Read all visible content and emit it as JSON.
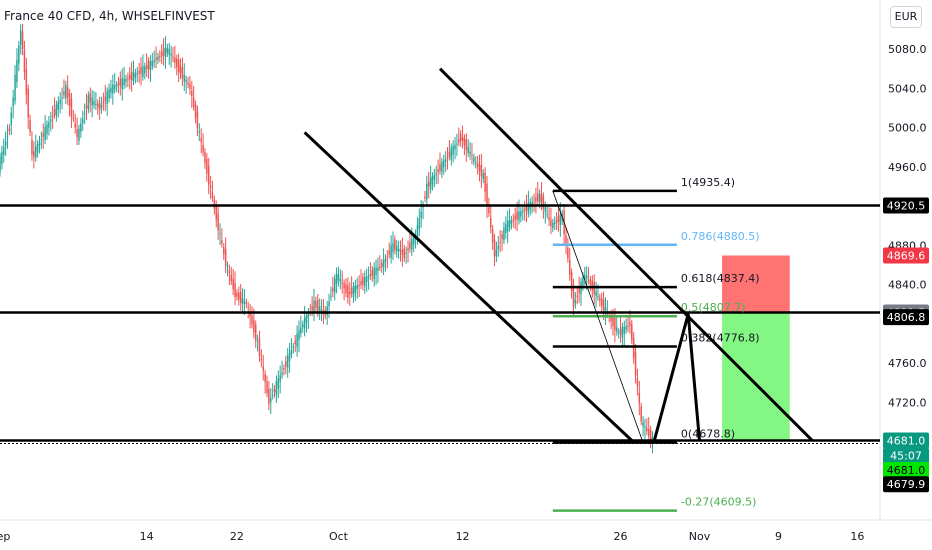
{
  "header": {
    "title": "France 40 CFD, 4h, WHSELFINVEST",
    "currency_label": "EUR"
  },
  "colors": {
    "up": "#26a69a",
    "down": "#ef5350",
    "fib_blue": "#64b5f6",
    "fib_green": "#4caf50",
    "stop_zone": "#ff6b6b",
    "target_zone": "#7cf57c",
    "line": "#000000"
  },
  "chart_data": {
    "type": "candlestick",
    "title": "France 40 CFD, 4h, WHSELFINVEST",
    "xlabel": "",
    "ylabel": "",
    "ylim": [
      4600,
      5130
    ],
    "x_start": "2020-09-01",
    "x_end": "2020-11-18",
    "x_ticks": [
      {
        "date": "2020-09-01",
        "label": "Sep"
      },
      {
        "date": "2020-09-14",
        "label": "14"
      },
      {
        "date": "2020-09-22",
        "label": "22"
      },
      {
        "date": "2020-10-01",
        "label": "Oct"
      },
      {
        "date": "2020-10-12",
        "label": "12"
      },
      {
        "date": "2020-10-26",
        "label": "26"
      },
      {
        "date": "2020-11-02",
        "label": "Nov"
      },
      {
        "date": "2020-11-09",
        "label": "9"
      },
      {
        "date": "2020-11-16",
        "label": "16"
      }
    ],
    "y_ticks": [
      5080.0,
      5040.0,
      5000.0,
      4960.0,
      4880.0,
      4840.0,
      4760.0,
      4720.0
    ],
    "y_tick_labels": [
      "5080.0",
      "5040.0",
      "5000.0",
      "4960.0",
      "4880.0",
      "4840.0",
      "4760.0",
      "4720.0"
    ],
    "price_path": [
      [
        "2020-09-01",
        4960
      ],
      [
        "2020-09-02",
        5000
      ],
      [
        "2020-09-03",
        5100
      ],
      [
        "2020-09-04",
        4970
      ],
      [
        "2020-09-07",
        5040
      ],
      [
        "2020-09-08",
        4990
      ],
      [
        "2020-09-09",
        5030
      ],
      [
        "2020-09-10",
        5020
      ],
      [
        "2020-09-11",
        5040
      ],
      [
        "2020-09-14",
        5060
      ],
      [
        "2020-09-15",
        5070
      ],
      [
        "2020-09-16",
        5080
      ],
      [
        "2020-09-17",
        5060
      ],
      [
        "2020-09-18",
        5040
      ],
      [
        "2020-09-21",
        4870
      ],
      [
        "2020-09-22",
        4830
      ],
      [
        "2020-09-23",
        4820
      ],
      [
        "2020-09-24",
        4780
      ],
      [
        "2020-09-25",
        4720
      ],
      [
        "2020-09-28",
        4800
      ],
      [
        "2020-09-29",
        4820
      ],
      [
        "2020-09-30",
        4810
      ],
      [
        "2020-10-01",
        4850
      ],
      [
        "2020-10-02",
        4830
      ],
      [
        "2020-10-05",
        4860
      ],
      [
        "2020-10-06",
        4880
      ],
      [
        "2020-10-07",
        4870
      ],
      [
        "2020-10-08",
        4890
      ],
      [
        "2020-10-09",
        4940
      ],
      [
        "2020-10-12",
        4990
      ],
      [
        "2020-10-13",
        4970
      ],
      [
        "2020-10-14",
        4950
      ],
      [
        "2020-10-15",
        4870
      ],
      [
        "2020-10-16",
        4900
      ],
      [
        "2020-10-19",
        4930
      ],
      [
        "2020-10-20",
        4900
      ],
      [
        "2020-10-21",
        4910
      ],
      [
        "2020-10-22",
        4820
      ],
      [
        "2020-10-23",
        4850
      ],
      [
        "2020-10-26",
        4790
      ],
      [
        "2020-10-27",
        4800
      ],
      [
        "2020-10-28",
        4700
      ],
      [
        "2020-10-29",
        4681
      ]
    ],
    "horizontal_levels": [
      {
        "price": 4920.5,
        "label": "4920.5",
        "color": "#000000"
      },
      {
        "price": 4811.5,
        "label": "4811.5",
        "color": "#000000"
      },
      {
        "price": 4681.0,
        "label": "4681.0",
        "color": "#000000"
      }
    ],
    "fibonacci": {
      "from_date": "2020-10-20",
      "to_date": "2020-10-31",
      "levels": [
        {
          "ratio": "1",
          "price": 4935.4,
          "label": "1(4935.4)",
          "color": "#000000"
        },
        {
          "ratio": "0.786",
          "price": 4880.5,
          "label": "0.786(4880.5)",
          "color": "#64b5f6"
        },
        {
          "ratio": "0.618",
          "price": 4837.4,
          "label": "0.618(4837.4)",
          "color": "#000000"
        },
        {
          "ratio": "0.5",
          "price": 4807.7,
          "label": "0.5(4807.7)",
          "color": "#4caf50"
        },
        {
          "ratio": "0.382",
          "price": 4776.8,
          "label": "0.382(4776.8)",
          "color": "#000000"
        },
        {
          "ratio": "0",
          "price": 4678.8,
          "label": "0(4678.8)",
          "color": "#000000"
        },
        {
          "ratio": "-0.27",
          "price": 4609.5,
          "label": "-0.27(4609.5)",
          "color": "#4caf50"
        }
      ]
    },
    "trendlines": [
      {
        "from": [
          "2020-09-28",
          4995
        ],
        "to": [
          "2020-10-27",
          4681
        ]
      },
      {
        "from": [
          "2020-10-10",
          5060
        ],
        "to": [
          "2020-11-12",
          4681
        ]
      }
    ],
    "projection_path": [
      [
        "2020-10-29",
        4681
      ],
      [
        "2020-11-01",
        4810
      ],
      [
        "2020-11-02",
        4681
      ]
    ],
    "position": {
      "from_date": "2020-11-04",
      "to_date": "2020-11-10",
      "entry": 4811.5,
      "stop": 4869.6,
      "target": 4681.0
    },
    "price_labels": [
      {
        "price": 4920.5,
        "text": "4920.5",
        "bg": "#000000",
        "fg": "#ffffff"
      },
      {
        "price": 4869.6,
        "text": "4869.6",
        "bg": "#f23645",
        "fg": "#ffffff"
      },
      {
        "price": 4811.5,
        "text": "4811.5",
        "bg": "#787b86",
        "fg": "#ffffff"
      },
      {
        "price": 4806.8,
        "text": "4806.8",
        "bg": "#000000",
        "fg": "#ffffff"
      },
      {
        "price": 4681.0,
        "text": "4681.0",
        "bg": "#089981",
        "fg": "#ffffff"
      },
      {
        "price": 4665.5,
        "text": "45:07",
        "bg": "#089981",
        "fg": "#ffffff"
      },
      {
        "price": 4651.0,
        "text": "4681.0",
        "bg": "#00e600",
        "fg": "#000000"
      },
      {
        "price": 4636.5,
        "text": "4679.9",
        "bg": "#000000",
        "fg": "#ffffff"
      }
    ]
  }
}
